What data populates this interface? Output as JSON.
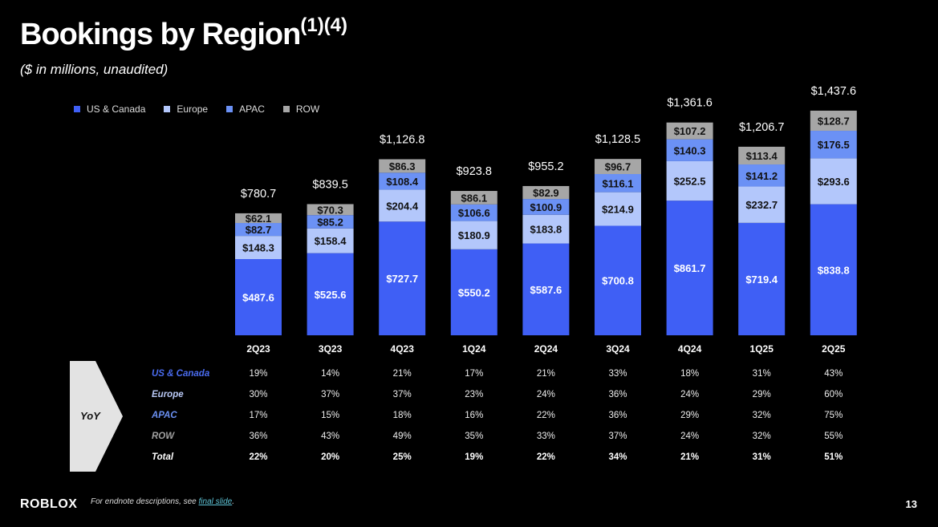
{
  "title": "Bookings by Region",
  "title_superscript": "(1)(4)",
  "subtitle": "($ in millions, unaudited)",
  "chart_data": {
    "type": "bar",
    "stacked": true,
    "categories": [
      "2Q23",
      "3Q23",
      "4Q23",
      "1Q24",
      "2Q24",
      "3Q24",
      "4Q24",
      "1Q25",
      "2Q25"
    ],
    "series": [
      {
        "name": "US & Canada",
        "color": "#3f5ff5",
        "label_color": "#ffffff",
        "values": [
          487.6,
          525.6,
          727.7,
          550.2,
          587.6,
          700.8,
          861.7,
          719.4,
          838.8
        ]
      },
      {
        "name": "Europe",
        "color": "#b3c7fb",
        "label_color": "#111111",
        "values": [
          148.3,
          158.4,
          204.4,
          180.9,
          183.8,
          214.9,
          252.5,
          232.7,
          293.6
        ]
      },
      {
        "name": "APAC",
        "color": "#6b91f5",
        "label_color": "#111111",
        "values": [
          82.7,
          85.2,
          108.4,
          106.6,
          100.9,
          116.1,
          140.3,
          141.2,
          176.5
        ]
      },
      {
        "name": "ROW",
        "color": "#a6a6a6",
        "label_color": "#111111",
        "values": [
          62.1,
          70.3,
          86.3,
          86.1,
          82.9,
          96.7,
          107.2,
          113.4,
          128.7
        ]
      }
    ],
    "totals": [
      "$780.7",
      "$839.5",
      "$1,126.8",
      "$923.8",
      "$955.2",
      "$1,128.5",
      "$1,361.6",
      "$1,206.7",
      "$1,437.6"
    ],
    "value_prefix": "$",
    "legend_position": "top-left",
    "grid": false
  },
  "yoy": {
    "label": "YoY",
    "rows": [
      {
        "name": "US & Canada",
        "color": "#4a6cf0",
        "bold": false,
        "values": [
          "19%",
          "14%",
          "21%",
          "17%",
          "21%",
          "33%",
          "18%",
          "31%",
          "43%"
        ]
      },
      {
        "name": "Europe",
        "color": "#b8c8f5",
        "bold": false,
        "values": [
          "30%",
          "37%",
          "37%",
          "23%",
          "24%",
          "36%",
          "24%",
          "29%",
          "60%"
        ]
      },
      {
        "name": "APAC",
        "color": "#6a8ff0",
        "bold": false,
        "values": [
          "17%",
          "15%",
          "18%",
          "16%",
          "22%",
          "36%",
          "29%",
          "32%",
          "75%"
        ]
      },
      {
        "name": "ROW",
        "color": "#a0a0a0",
        "bold": false,
        "values": [
          "36%",
          "43%",
          "49%",
          "35%",
          "33%",
          "37%",
          "24%",
          "32%",
          "55%"
        ]
      },
      {
        "name": "Total",
        "color": "#ffffff",
        "bold": true,
        "values": [
          "22%",
          "20%",
          "25%",
          "19%",
          "22%",
          "34%",
          "21%",
          "31%",
          "51%"
        ]
      }
    ]
  },
  "footer": {
    "logo": "ROBLOX",
    "note": "For endnote descriptions, see ",
    "link": "final slide",
    "note_end": ".",
    "page": "13"
  }
}
